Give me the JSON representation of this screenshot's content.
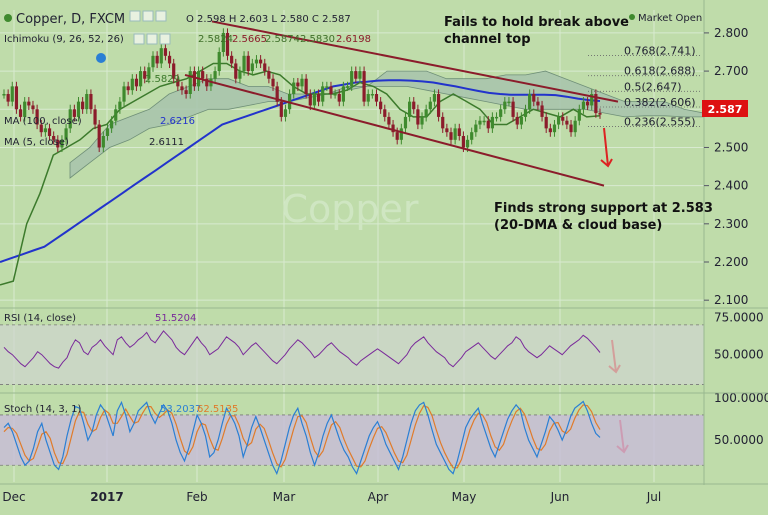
{
  "header": {
    "symbol_line": "Copper, D, FXCM",
    "ohlc": "O 2.598  H 2.603  L 2.580  C 2.587",
    "market_status": "Market Open",
    "ichimoku_label": "Ichimoku (9, 26, 52, 26)",
    "ichimoku_values": [
      "2.5824",
      "2.5665",
      "2.5874",
      "2.5830",
      "2.6198"
    ],
    "ma20_value": "2.5829",
    "ma100_label": "MA (100, close)",
    "ma100_value": "2.6216",
    "ma5_label": "MA (5, close)",
    "ma5_value": "2.6111",
    "last_price": "2.587",
    "watermark": "Copper"
  },
  "annotations": {
    "top_note": "Fails to hold break above\nchannel top",
    "bottom_note": "Finds strong support at 2.583\n(20-DMA & cloud base)"
  },
  "colors": {
    "background": "#bfdcaa",
    "grid": "#d8ead0",
    "up_candle": "#3f8a2e",
    "down_candle": "#8b1c2b",
    "ma100": "#2233cc",
    "ma20": "#3c7a2c",
    "cloud_fill": "#a7c3ad",
    "channel": "#8b1c2b",
    "arrow": "#dd2222",
    "rsi_line": "#7a2a9a",
    "stoch_k": "#2a7fd4",
    "stoch_d": "#e07b2a",
    "rsi_band": "#cfd4cf",
    "stoch_band": "#c8bcd8",
    "price_tag": "#dd1111"
  },
  "chart_data": [
    {
      "type": "candlestick",
      "title": "Copper, D, FXCM",
      "x_labels": [
        "Dec",
        "2017",
        "Feb",
        "Mar",
        "Apr",
        "May",
        "Jun",
        "Jul"
      ],
      "y_ticks": [
        2.1,
        2.2,
        2.3,
        2.4,
        2.5,
        2.6,
        2.7,
        2.8
      ],
      "y_tick_labels": [
        "2.100",
        "2.200",
        "2.300",
        "2.400",
        "2.500",
        "2.600",
        "2.700",
        "2.800"
      ],
      "ylim": [
        2.09,
        2.86
      ],
      "close_series": [
        2.64,
        2.62,
        2.66,
        2.6,
        2.58,
        2.62,
        2.61,
        2.6,
        2.56,
        2.54,
        2.55,
        2.53,
        2.52,
        2.5,
        2.52,
        2.55,
        2.6,
        2.58,
        2.62,
        2.6,
        2.64,
        2.6,
        2.56,
        2.5,
        2.53,
        2.55,
        2.57,
        2.6,
        2.62,
        2.66,
        2.65,
        2.68,
        2.66,
        2.7,
        2.68,
        2.71,
        2.74,
        2.72,
        2.76,
        2.74,
        2.72,
        2.68,
        2.66,
        2.65,
        2.64,
        2.7,
        2.66,
        2.7,
        2.68,
        2.66,
        2.68,
        2.7,
        2.75,
        2.8,
        2.74,
        2.72,
        2.68,
        2.7,
        2.74,
        2.7,
        2.72,
        2.73,
        2.72,
        2.7,
        2.68,
        2.66,
        2.62,
        2.58,
        2.6,
        2.64,
        2.67,
        2.66,
        2.68,
        2.64,
        2.61,
        2.64,
        2.62,
        2.66,
        2.66,
        2.64,
        2.64,
        2.62,
        2.66,
        2.66,
        2.7,
        2.68,
        2.7,
        2.62,
        2.64,
        2.64,
        2.62,
        2.6,
        2.58,
        2.56,
        2.54,
        2.52,
        2.55,
        2.58,
        2.62,
        2.6,
        2.56,
        2.58,
        2.6,
        2.62,
        2.64,
        2.58,
        2.55,
        2.54,
        2.52,
        2.55,
        2.53,
        2.5,
        2.52,
        2.54,
        2.56,
        2.57,
        2.57,
        2.55,
        2.58,
        2.58,
        2.6,
        2.62,
        2.62,
        2.58,
        2.56,
        2.58,
        2.6,
        2.64,
        2.62,
        2.61,
        2.58,
        2.55,
        2.54,
        2.56,
        2.58,
        2.57,
        2.56,
        2.54,
        2.57,
        2.6,
        2.62,
        2.61,
        2.64,
        2.59,
        2.587
      ],
      "ma100_series": [
        2.2,
        2.21,
        2.22,
        2.23,
        2.24,
        2.26,
        2.28,
        2.3,
        2.32,
        2.34,
        2.36,
        2.38,
        2.4,
        2.42,
        2.44,
        2.46,
        2.48,
        2.5,
        2.52,
        2.54,
        2.56,
        2.57,
        2.58,
        2.59,
        2.6,
        2.61,
        2.62,
        2.63,
        2.64,
        2.65,
        2.66,
        2.665,
        2.67,
        2.672,
        2.675,
        2.676,
        2.676,
        2.675,
        2.673,
        2.67,
        2.665,
        2.66,
        2.654,
        2.648,
        2.643,
        2.64,
        2.638,
        2.638,
        2.638,
        2.638,
        2.637,
        2.633,
        2.628,
        2.624,
        2.6216
      ],
      "ma20_series": [
        2.14,
        2.15,
        2.3,
        2.38,
        2.48,
        2.5,
        2.52,
        2.55,
        2.56,
        2.6,
        2.62,
        2.64,
        2.66,
        2.67,
        2.68,
        2.7,
        2.72,
        2.72,
        2.7,
        2.69,
        2.7,
        2.69,
        2.66,
        2.64,
        2.64,
        2.64,
        2.65,
        2.67,
        2.66,
        2.64,
        2.6,
        2.58,
        2.58,
        2.62,
        2.64,
        2.62,
        2.6,
        2.56,
        2.56,
        2.58,
        2.6,
        2.59,
        2.58,
        2.6,
        2.58,
        2.583
      ],
      "cloud_top": [
        2.46,
        2.5,
        2.56,
        2.58,
        2.6,
        2.64,
        2.66,
        2.68,
        2.68,
        2.66,
        2.66,
        2.64,
        2.64,
        2.64,
        2.66,
        2.66,
        2.7,
        2.7,
        2.7,
        2.68,
        2.68,
        2.68,
        2.69,
        2.69,
        2.7,
        2.68,
        2.66,
        2.64,
        2.62,
        2.62,
        2.62,
        2.6,
        2.59
      ],
      "cloud_base": [
        2.42,
        2.46,
        2.5,
        2.52,
        2.55,
        2.56,
        2.58,
        2.6,
        2.6,
        2.61,
        2.62,
        2.62,
        2.63,
        2.64,
        2.65,
        2.66,
        2.66,
        2.66,
        2.65,
        2.64,
        2.63,
        2.62,
        2.61,
        2.6,
        2.6,
        2.6,
        2.6,
        2.59,
        2.58,
        2.583,
        2.583,
        2.58,
        2.58
      ],
      "channel_upper": [
        [
          2.83,
          2.62
        ]
      ],
      "channel_lower": [
        [
          2.69,
          2.4
        ]
      ],
      "fibonacci": [
        {
          "label": "0.768(2.741)",
          "value": 2.741
        },
        {
          "label": "0.618(2.688)",
          "value": 2.688
        },
        {
          "label": "0.5(2.647)",
          "value": 2.647
        },
        {
          "label": "0.382(2.606)",
          "value": 2.606
        },
        {
          "label": "0.236(2.555)",
          "value": 2.555
        }
      ],
      "last_price": 2.587
    },
    {
      "type": "line",
      "title": "RSI (14, close)",
      "value_label": "51.5204",
      "y_ticks": [
        50,
        75
      ],
      "y_tick_labels": [
        "50.0000",
        "75.0000"
      ],
      "ylim": [
        25,
        80
      ],
      "band": [
        30,
        70
      ],
      "values": [
        55,
        52,
        50,
        47,
        44,
        42,
        45,
        48,
        52,
        50,
        47,
        44,
        42,
        41,
        45,
        48,
        55,
        60,
        58,
        52,
        50,
        55,
        57,
        60,
        56,
        53,
        50,
        60,
        62,
        58,
        55,
        57,
        60,
        62,
        65,
        60,
        58,
        62,
        66,
        63,
        60,
        55,
        52,
        50,
        54,
        58,
        62,
        58,
        55,
        50,
        52,
        54,
        58,
        62,
        60,
        58,
        55,
        50,
        53,
        56,
        58,
        55,
        52,
        49,
        46,
        44,
        47,
        50,
        54,
        57,
        60,
        58,
        55,
        52,
        48,
        50,
        53,
        56,
        58,
        55,
        52,
        50,
        48,
        45,
        43,
        46,
        48,
        50,
        52,
        54,
        52,
        50,
        48,
        46,
        44,
        47,
        50,
        55,
        58,
        60,
        62,
        58,
        55,
        52,
        50,
        48,
        44,
        42,
        45,
        48,
        52,
        54,
        56,
        58,
        55,
        52,
        49,
        47,
        50,
        53,
        56,
        58,
        62,
        60,
        55,
        52,
        50,
        48,
        50,
        53,
        56,
        54,
        52,
        50,
        53,
        56,
        58,
        60,
        63,
        61,
        58,
        55,
        51.5204
      ],
      "series": [
        {
          "name": "RSI (14, close)"
        }
      ]
    },
    {
      "type": "line",
      "title": "Stoch (14, 3, 1)",
      "value_labels": [
        "53.2037",
        "62.5135"
      ],
      "y_ticks": [
        50,
        100
      ],
      "y_tick_labels": [
        "50.0000",
        "100.0000"
      ],
      "ylim": [
        0,
        105
      ],
      "band": [
        20,
        80
      ],
      "series": [
        {
          "name": "%K",
          "values": [
            65,
            70,
            60,
            45,
            30,
            20,
            25,
            40,
            60,
            70,
            50,
            35,
            20,
            15,
            30,
            55,
            75,
            90,
            88,
            70,
            50,
            60,
            80,
            92,
            85,
            70,
            55,
            85,
            95,
            80,
            60,
            70,
            85,
            90,
            95,
            80,
            70,
            82,
            92,
            85,
            70,
            50,
            35,
            25,
            40,
            60,
            80,
            70,
            55,
            30,
            35,
            50,
            70,
            88,
            80,
            70,
            55,
            30,
            45,
            65,
            78,
            65,
            50,
            35,
            20,
            10,
            25,
            45,
            65,
            80,
            88,
            70,
            55,
            35,
            20,
            35,
            55,
            70,
            80,
            65,
            50,
            38,
            30,
            18,
            10,
            25,
            40,
            55,
            65,
            72,
            60,
            45,
            35,
            25,
            15,
            30,
            50,
            70,
            85,
            92,
            95,
            80,
            62,
            45,
            35,
            25,
            15,
            10,
            25,
            45,
            65,
            75,
            82,
            88,
            70,
            55,
            40,
            30,
            45,
            60,
            75,
            85,
            92,
            86,
            65,
            50,
            40,
            30,
            45,
            60,
            78,
            72,
            62,
            50,
            62,
            78,
            88,
            92,
            96,
            85,
            70,
            58,
            53.2037
          ]
        },
        {
          "name": "%D",
          "values": [
            60,
            65,
            64,
            58,
            45,
            32,
            25,
            28,
            42,
            57,
            60,
            52,
            35,
            23,
            22,
            33,
            53,
            73,
            84,
            83,
            69,
            60,
            63,
            77,
            86,
            82,
            70,
            70,
            78,
            87,
            78,
            70,
            72,
            82,
            90,
            90,
            82,
            77,
            81,
            86,
            82,
            69,
            52,
            37,
            33,
            42,
            60,
            70,
            68,
            52,
            40,
            38,
            52,
            69,
            79,
            79,
            68,
            52,
            43,
            47,
            63,
            69,
            64,
            50,
            35,
            22,
            18,
            27,
            45,
            63,
            78,
            79,
            71,
            53,
            37,
            30,
            37,
            53,
            68,
            72,
            65,
            51,
            39,
            29,
            19,
            18,
            25,
            40,
            53,
            64,
            66,
            59,
            47,
            35,
            25,
            23,
            32,
            50,
            68,
            82,
            91,
            89,
            79,
            62,
            47,
            35,
            25,
            17,
            17,
            27,
            45,
            62,
            74,
            82,
            80,
            71,
            55,
            42,
            38,
            45,
            60,
            73,
            84,
            88,
            81,
            67,
            52,
            40,
            38,
            45,
            61,
            70,
            71,
            61,
            58,
            63,
            76,
            86,
            92,
            91,
            84,
            71,
            62.5135
          ]
        }
      ]
    }
  ]
}
